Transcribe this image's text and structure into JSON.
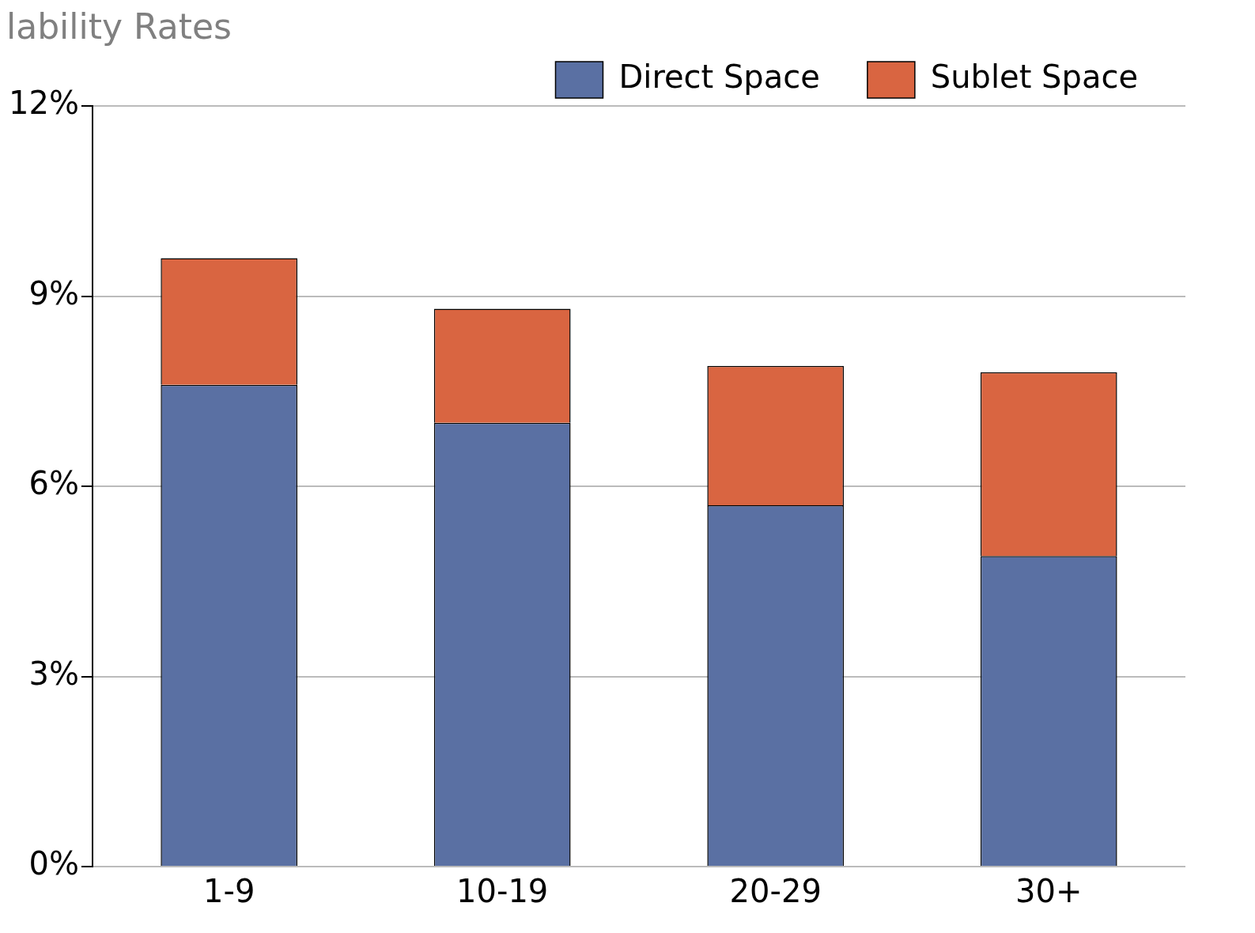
{
  "chart_data": {
    "type": "bar",
    "title": "lability Rates",
    "categories": [
      "1-9",
      "10-19",
      "20-29",
      "30+"
    ],
    "stacked": true,
    "series": [
      {
        "name": "Direct Space",
        "color": "#5a70a3",
        "values": [
          7.6,
          7.0,
          5.7,
          4.9
        ]
      },
      {
        "name": "Sublet Space",
        "color": "#d96541",
        "values": [
          2.0,
          1.8,
          2.2,
          2.9
        ]
      }
    ],
    "ylim": [
      0,
      12
    ],
    "yticks": [
      {
        "value": 0,
        "label": "0%"
      },
      {
        "value": 3,
        "label": "3%"
      },
      {
        "value": 6,
        "label": "6%"
      },
      {
        "value": 9,
        "label": "9%"
      },
      {
        "value": 12,
        "label": "12%"
      }
    ],
    "grid": "y",
    "legend": "top right"
  }
}
